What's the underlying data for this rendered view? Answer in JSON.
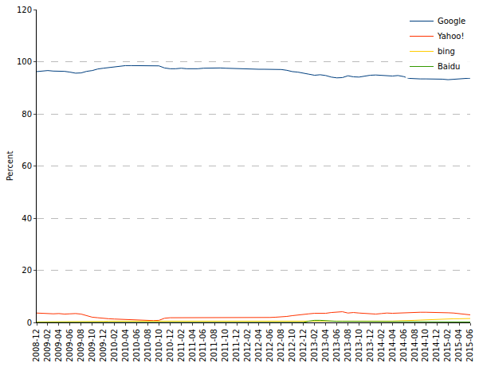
{
  "chart_data": {
    "type": "line",
    "y_label": "Percent",
    "categories": [
      "2008-12",
      null,
      "2009-02",
      null,
      "2009-04",
      null,
      "2009-06",
      null,
      "2009-08",
      null,
      "2009-10",
      null,
      "2009-12",
      null,
      "2010-02",
      null,
      "2010-04",
      null,
      "2010-06",
      null,
      "2010-08",
      null,
      "2010-10",
      null,
      "2010-12",
      null,
      "2011-02",
      null,
      "2011-04",
      null,
      "2011-06",
      null,
      "2011-08",
      null,
      "2011-10",
      null,
      "2011-12",
      null,
      "2012-02",
      null,
      "2012-04",
      null,
      "2012-06",
      null,
      "2012-08",
      null,
      "2012-10",
      null,
      "2012-12",
      null,
      "2013-02",
      null,
      "2013-04",
      null,
      "2013-06",
      null,
      "2013-08",
      null,
      "2013-10",
      null,
      "2013-12",
      null,
      "2014-02",
      null,
      "2014-04",
      null,
      "2014-06",
      null,
      "2014-08",
      null,
      "2014-10",
      null,
      "2014-12",
      null,
      "2015-02",
      null,
      "2015-04",
      null,
      "2015-06"
    ],
    "series": [
      {
        "name": "Google",
        "color": "#003f7f",
        "values": [
          96.2,
          96.3,
          96.6,
          96.4,
          96.4,
          96.3,
          96.0,
          95.6,
          95.7,
          96.3,
          96.6,
          97.2,
          97.5,
          97.8,
          98.1,
          98.4,
          98.5,
          98.5,
          98.5,
          98.5,
          98.5,
          98.5,
          98.4,
          97.6,
          97.3,
          97.3,
          97.5,
          97.3,
          97.2,
          97.3,
          97.5,
          97.6,
          97.6,
          97.6,
          97.5,
          97.4,
          97.4,
          97.3,
          97.3,
          97.2,
          97.1,
          97.1,
          97.1,
          97.1,
          97.0,
          96.7,
          96.2,
          96.0,
          95.7,
          95.2,
          94.8,
          95.0,
          94.7,
          94.1,
          93.8,
          93.9,
          94.6,
          94.2,
          94.1,
          94.5,
          94.8,
          94.9,
          94.8,
          94.5,
          94.5,
          94.7,
          94.3,
          93.6,
          93.4,
          93.4,
          93.4,
          93.4,
          93.3,
          93.3,
          93.1,
          93.2,
          93.3,
          93.5,
          93.7
        ]
      },
      {
        "name": "Yahoo!",
        "color": "#ff3300",
        "values": [
          3.6,
          3.5,
          3.3,
          3.3,
          3.4,
          3.2,
          3.3,
          3.4,
          3.2,
          2.5,
          2.0,
          1.8,
          1.5,
          1.4,
          1.3,
          1.2,
          1.0,
          1.0,
          1.0,
          0.9,
          0.8,
          0.7,
          0.8,
          1.6,
          1.8,
          1.8,
          1.7,
          1.7,
          1.7,
          1.7,
          1.7,
          1.7,
          1.7,
          1.7,
          1.7,
          1.7,
          1.8,
          1.8,
          1.8,
          1.8,
          1.8,
          1.8,
          1.9,
          2.0,
          2.1,
          2.3,
          2.6,
          2.9,
          3.1,
          3.3,
          3.5,
          3.4,
          3.5,
          3.8,
          4.0,
          4.1,
          3.6,
          3.8,
          3.6,
          3.4,
          3.4,
          3.2,
          3.4,
          3.6,
          3.5,
          3.6,
          3.8,
          3.9,
          3.9,
          3.9,
          3.9,
          3.9,
          3.9,
          3.8,
          3.7,
          3.6,
          3.3,
          3.0,
          2.9
        ]
      },
      {
        "name": "bing",
        "color": "#ffcc00",
        "values": [
          0.2,
          0.2,
          0.2,
          0.2,
          0.2,
          0.2,
          0.3,
          0.3,
          0.4,
          0.4,
          0.4,
          0.4,
          0.4,
          0.5,
          0.5,
          0.5,
          0.5,
          0.5,
          0.5,
          0.5,
          0.5,
          0.5,
          0.5,
          0.5,
          0.5,
          0.5,
          0.5,
          0.5,
          0.5,
          0.5,
          0.5,
          0.5,
          0.5,
          0.5,
          0.5,
          0.5,
          0.5,
          0.5,
          0.5,
          0.5,
          0.5,
          0.5,
          0.5,
          0.5,
          0.5,
          0.5,
          0.4,
          0.4,
          0.3,
          0.3,
          0.3,
          0.3,
          0.3,
          0.3,
          0.3,
          0.3,
          0.3,
          0.3,
          0.3,
          0.3,
          0.3,
          0.4,
          0.4,
          0.5,
          0.5,
          0.6,
          0.6,
          0.7,
          0.8,
          0.9,
          1.0,
          1.2,
          1.3,
          1.3,
          1.3,
          1.4,
          1.4,
          1.5,
          1.5
        ]
      },
      {
        "name": "Baidu",
        "color": "#339900",
        "values": [
          0,
          0,
          0,
          0,
          0,
          0,
          0,
          0,
          0,
          0,
          0,
          0,
          0,
          0,
          0,
          0,
          0,
          0,
          0,
          0,
          0,
          0,
          0,
          0,
          0,
          0,
          0,
          0,
          0,
          0,
          0,
          0,
          0,
          0,
          0,
          0,
          0,
          0,
          0,
          0,
          0,
          0,
          0,
          0,
          0,
          0,
          0,
          0,
          0,
          0.5,
          0.8,
          0.8,
          0.6,
          0.5,
          0.4,
          0.4,
          0.4,
          0.3,
          0.3,
          0.3,
          0.3,
          0.2,
          0.2,
          0.2,
          0.2,
          0.2,
          0.2,
          0.2,
          0.2,
          0.2,
          0.2,
          0.2,
          0.2,
          0.2,
          0.2,
          0.2,
          0.2,
          0.2,
          0.2
        ]
      }
    ],
    "ylim": [
      0,
      120
    ],
    "yticks": [
      0,
      20,
      40,
      60,
      80,
      100,
      120
    ],
    "grid": true,
    "legend": "top-right",
    "line_style": "solid"
  }
}
